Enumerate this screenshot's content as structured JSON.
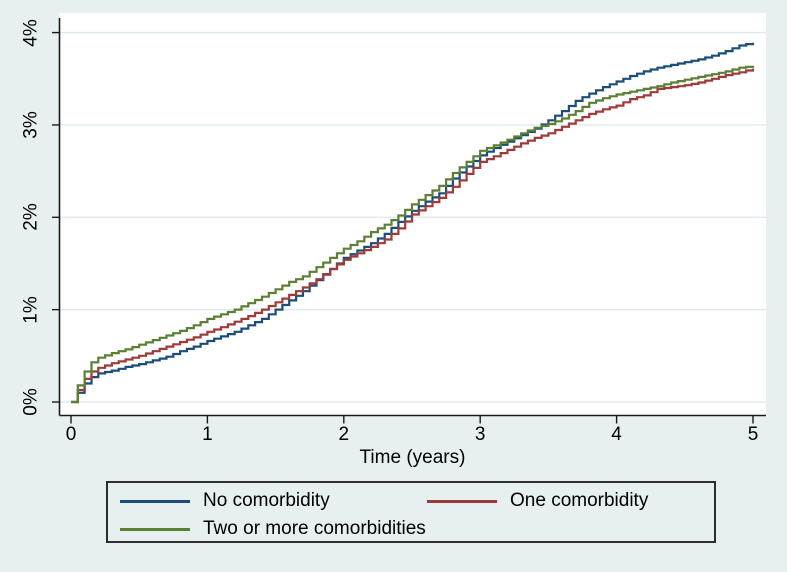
{
  "figure": {
    "background_color": "#e8eff1",
    "plot_background_color": "#ffffff",
    "grid_color": "#ddeaee",
    "axis_color": "#1a1a1a"
  },
  "legend": {
    "items": [
      {
        "label": "No comorbidity",
        "color": "#1c4d78"
      },
      {
        "label": "One comorbidity",
        "color": "#9c3b39"
      },
      {
        "label": "Two or more comorbidities",
        "color": "#5b7f34"
      }
    ]
  },
  "chart_data": {
    "type": "line",
    "subtype": "cumulative-incidence-step",
    "title": "",
    "xlabel": "Time (years)",
    "ylabel": "",
    "xlim": [
      0,
      5
    ],
    "ylim": [
      0,
      4
    ],
    "x_ticks": [
      0,
      1,
      2,
      3,
      4,
      5
    ],
    "x_tick_labels": [
      "0",
      "1",
      "2",
      "3",
      "4",
      "5"
    ],
    "y_ticks": [
      0,
      1,
      2,
      3,
      4
    ],
    "y_tick_labels": [
      "0%",
      "1%",
      "2%",
      "3%",
      "4%"
    ],
    "grid": "horizontal",
    "legend_position": "bottom",
    "y_unit": "percent",
    "series": [
      {
        "name": "No comorbidity",
        "color": "#1c4d78",
        "points": [
          [
            0,
            0
          ],
          [
            0.05,
            0.1
          ],
          [
            0.1,
            0.2
          ],
          [
            0.15,
            0.27
          ],
          [
            0.2,
            0.31
          ],
          [
            0.3,
            0.34
          ],
          [
            0.4,
            0.38
          ],
          [
            0.5,
            0.41
          ],
          [
            0.6,
            0.45
          ],
          [
            0.7,
            0.49
          ],
          [
            0.8,
            0.55
          ],
          [
            0.9,
            0.6
          ],
          [
            1.0,
            0.66
          ],
          [
            1.1,
            0.71
          ],
          [
            1.2,
            0.76
          ],
          [
            1.3,
            0.83
          ],
          [
            1.4,
            0.9
          ],
          [
            1.5,
            1.0
          ],
          [
            1.6,
            1.1
          ],
          [
            1.7,
            1.2
          ],
          [
            1.8,
            1.32
          ],
          [
            1.9,
            1.44
          ],
          [
            2.0,
            1.56
          ],
          [
            2.1,
            1.64
          ],
          [
            2.2,
            1.72
          ],
          [
            2.3,
            1.82
          ],
          [
            2.4,
            1.95
          ],
          [
            2.5,
            2.07
          ],
          [
            2.6,
            2.17
          ],
          [
            2.7,
            2.26
          ],
          [
            2.8,
            2.42
          ],
          [
            2.9,
            2.55
          ],
          [
            3.0,
            2.67
          ],
          [
            3.1,
            2.75
          ],
          [
            3.2,
            2.82
          ],
          [
            3.3,
            2.89
          ],
          [
            3.4,
            2.96
          ],
          [
            3.5,
            3.05
          ],
          [
            3.6,
            3.15
          ],
          [
            3.7,
            3.26
          ],
          [
            3.8,
            3.34
          ],
          [
            3.9,
            3.41
          ],
          [
            4.0,
            3.47
          ],
          [
            4.1,
            3.53
          ],
          [
            4.2,
            3.58
          ],
          [
            4.3,
            3.62
          ],
          [
            4.4,
            3.65
          ],
          [
            4.5,
            3.68
          ],
          [
            4.6,
            3.71
          ],
          [
            4.7,
            3.75
          ],
          [
            4.8,
            3.8
          ],
          [
            4.9,
            3.86
          ],
          [
            5.0,
            3.89
          ]
        ]
      },
      {
        "name": "One comorbidity",
        "color": "#9c3b39",
        "points": [
          [
            0,
            0
          ],
          [
            0.05,
            0.13
          ],
          [
            0.1,
            0.25
          ],
          [
            0.15,
            0.33
          ],
          [
            0.2,
            0.37
          ],
          [
            0.3,
            0.42
          ],
          [
            0.4,
            0.46
          ],
          [
            0.5,
            0.5
          ],
          [
            0.6,
            0.55
          ],
          [
            0.7,
            0.6
          ],
          [
            0.8,
            0.65
          ],
          [
            0.9,
            0.7
          ],
          [
            1.0,
            0.76
          ],
          [
            1.1,
            0.81
          ],
          [
            1.2,
            0.87
          ],
          [
            1.3,
            0.93
          ],
          [
            1.4,
            1.0
          ],
          [
            1.5,
            1.08
          ],
          [
            1.6,
            1.16
          ],
          [
            1.7,
            1.24
          ],
          [
            1.8,
            1.33
          ],
          [
            1.9,
            1.44
          ],
          [
            2.0,
            1.54
          ],
          [
            2.1,
            1.61
          ],
          [
            2.2,
            1.68
          ],
          [
            2.3,
            1.76
          ],
          [
            2.4,
            1.88
          ],
          [
            2.5,
            2.03
          ],
          [
            2.6,
            2.12
          ],
          [
            2.7,
            2.21
          ],
          [
            2.8,
            2.33
          ],
          [
            2.9,
            2.47
          ],
          [
            3.0,
            2.6
          ],
          [
            3.1,
            2.66
          ],
          [
            3.2,
            2.73
          ],
          [
            3.3,
            2.8
          ],
          [
            3.4,
            2.86
          ],
          [
            3.5,
            2.91
          ],
          [
            3.6,
            2.98
          ],
          [
            3.7,
            3.05
          ],
          [
            3.8,
            3.12
          ],
          [
            3.9,
            3.17
          ],
          [
            4.0,
            3.21
          ],
          [
            4.1,
            3.28
          ],
          [
            4.2,
            3.32
          ],
          [
            4.3,
            3.39
          ],
          [
            4.4,
            3.41
          ],
          [
            4.5,
            3.43
          ],
          [
            4.6,
            3.46
          ],
          [
            4.7,
            3.5
          ],
          [
            4.8,
            3.54
          ],
          [
            4.9,
            3.57
          ],
          [
            5.0,
            3.61
          ]
        ]
      },
      {
        "name": "Two or more comorbidities",
        "color": "#5b7f34",
        "points": [
          [
            0,
            0
          ],
          [
            0.05,
            0.18
          ],
          [
            0.1,
            0.33
          ],
          [
            0.15,
            0.43
          ],
          [
            0.2,
            0.48
          ],
          [
            0.3,
            0.53
          ],
          [
            0.4,
            0.57
          ],
          [
            0.5,
            0.62
          ],
          [
            0.6,
            0.67
          ],
          [
            0.7,
            0.72
          ],
          [
            0.8,
            0.77
          ],
          [
            0.9,
            0.83
          ],
          [
            1.0,
            0.9
          ],
          [
            1.1,
            0.95
          ],
          [
            1.2,
            1.0
          ],
          [
            1.3,
            1.07
          ],
          [
            1.4,
            1.14
          ],
          [
            1.5,
            1.22
          ],
          [
            1.6,
            1.3
          ],
          [
            1.7,
            1.36
          ],
          [
            1.8,
            1.46
          ],
          [
            1.9,
            1.56
          ],
          [
            2.0,
            1.66
          ],
          [
            2.1,
            1.74
          ],
          [
            2.2,
            1.84
          ],
          [
            2.3,
            1.92
          ],
          [
            2.4,
            2.02
          ],
          [
            2.5,
            2.14
          ],
          [
            2.6,
            2.24
          ],
          [
            2.7,
            2.34
          ],
          [
            2.8,
            2.48
          ],
          [
            2.9,
            2.6
          ],
          [
            3.0,
            2.72
          ],
          [
            3.1,
            2.78
          ],
          [
            3.2,
            2.84
          ],
          [
            3.3,
            2.91
          ],
          [
            3.4,
            2.97
          ],
          [
            3.5,
            3.01
          ],
          [
            3.6,
            3.07
          ],
          [
            3.7,
            3.15
          ],
          [
            3.8,
            3.24
          ],
          [
            3.9,
            3.29
          ],
          [
            4.0,
            3.33
          ],
          [
            4.1,
            3.36
          ],
          [
            4.2,
            3.39
          ],
          [
            4.3,
            3.42
          ],
          [
            4.4,
            3.46
          ],
          [
            4.5,
            3.49
          ],
          [
            4.6,
            3.52
          ],
          [
            4.7,
            3.55
          ],
          [
            4.8,
            3.58
          ],
          [
            4.9,
            3.62
          ],
          [
            5.0,
            3.64
          ]
        ]
      }
    ]
  }
}
